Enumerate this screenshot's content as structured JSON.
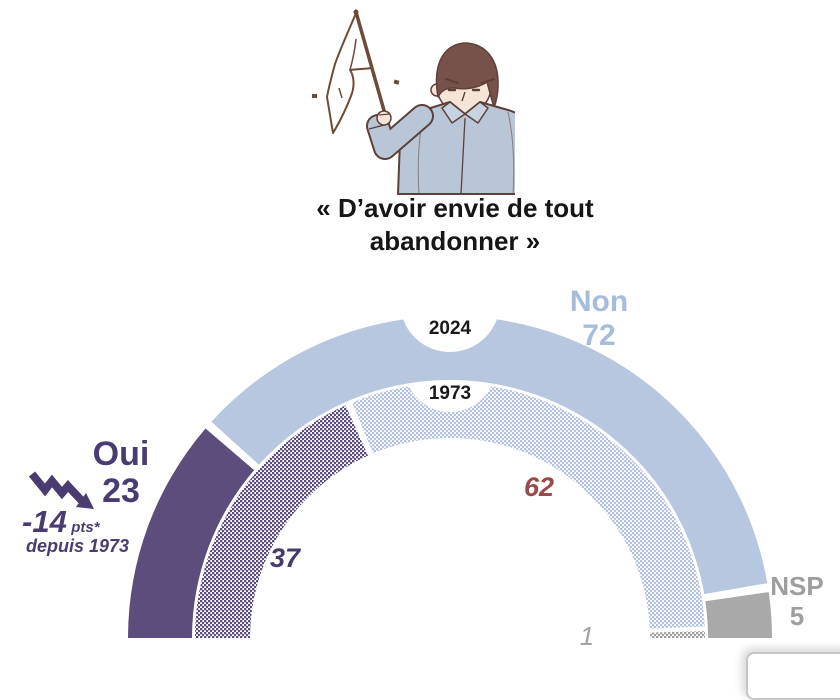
{
  "header": {
    "title": "« D’avoir envie de tout abandonner »"
  },
  "illustration": "man-holding-white-flag",
  "chart_data": {
    "type": "gauge",
    "shape": "semicircle-double-donut",
    "unit": "%",
    "rings": [
      {
        "year": "2024",
        "style": "solid",
        "segments": [
          {
            "label": "Oui",
            "value": 23,
            "color": "#5c4d7c"
          },
          {
            "label": "Non",
            "value": 72,
            "color": "#b8c7e0"
          },
          {
            "label": "NSP",
            "value": 5,
            "color": "#a9a9a9"
          }
        ]
      },
      {
        "year": "1973",
        "style": "checker-pattern",
        "segments": [
          {
            "label": "Oui",
            "value": 37,
            "color": "#5c4d7c"
          },
          {
            "label": "Non",
            "value": 62,
            "color": "#b3c3dc"
          },
          {
            "label": "NSP",
            "value": 1,
            "color": "#9e9e9e"
          }
        ]
      }
    ],
    "annotation": {
      "delta": "-14",
      "unit": "pts*",
      "since": "depuis 1973",
      "icon": "zigzag-decline-arrow",
      "color": "#4a3c71"
    },
    "legend_colors": {
      "oui_text": "#4a3c71",
      "non_text": "#a6bcdc",
      "nsp_text": "#9e9e9e",
      "v62_text": "#9b4949",
      "v1_text": "#a3a3a3"
    }
  }
}
